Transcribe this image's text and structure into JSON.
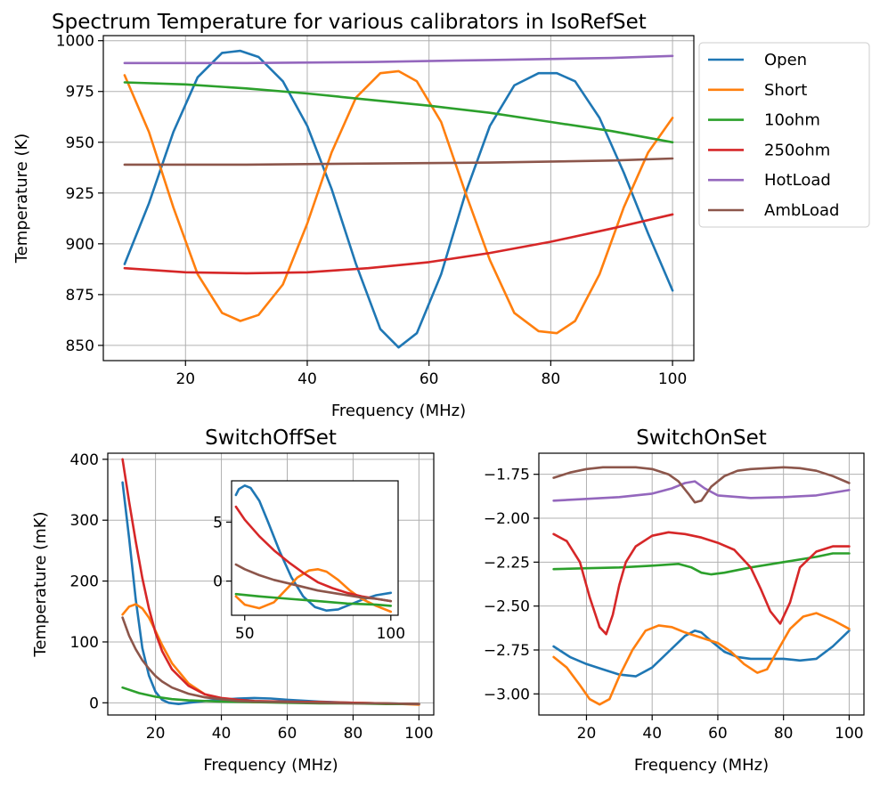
{
  "legend": [
    "Open",
    "Short",
    "10ohm",
    "250ohm",
    "HotLoad",
    "AmbLoad"
  ],
  "colors": {
    "Open": "#1f77b4",
    "Short": "#ff7f0e",
    "10ohm": "#2ca02c",
    "250ohm": "#d62728",
    "HotLoad": "#9467bd",
    "AmbLoad": "#8c564b"
  },
  "chart_data": [
    {
      "id": "main",
      "type": "line",
      "title": "Spectrum Temperature for various calibrators in IsoRefSet",
      "xlabel": "Frequency (MHz)",
      "ylabel": "Temperature (K)",
      "xlim": [
        6.5,
        103.5
      ],
      "ylim": [
        842.5,
        1002.5
      ],
      "xticks": [
        20,
        40,
        60,
        80,
        100
      ],
      "yticks": [
        850,
        875,
        900,
        925,
        950,
        975,
        1000
      ],
      "grid": true,
      "legend_position": "outside-right",
      "series": [
        {
          "name": "Open",
          "x": [
            10,
            14,
            18,
            22,
            26,
            29,
            32,
            36,
            40,
            44,
            48,
            52,
            55,
            58,
            62,
            66,
            70,
            74,
            78,
            81,
            84,
            88,
            92,
            96,
            100
          ],
          "y": [
            890,
            920,
            955,
            982,
            994,
            995,
            992,
            980,
            958,
            927,
            890,
            858,
            849,
            856,
            885,
            925,
            958,
            978,
            984,
            984,
            980,
            962,
            935,
            905,
            877
          ]
        },
        {
          "name": "Short",
          "x": [
            10,
            14,
            18,
            22,
            26,
            29,
            32,
            36,
            40,
            44,
            48,
            52,
            55,
            58,
            62,
            66,
            70,
            74,
            78,
            81,
            84,
            88,
            92,
            96,
            100
          ],
          "y": [
            983,
            955,
            918,
            885,
            866,
            862,
            865,
            880,
            910,
            945,
            972,
            984,
            985,
            980,
            960,
            925,
            892,
            866,
            857,
            856,
            862,
            885,
            918,
            945,
            962
          ]
        },
        {
          "name": "10ohm",
          "x": [
            10,
            20,
            30,
            40,
            50,
            60,
            70,
            80,
            90,
            100
          ],
          "y": [
            979.5,
            978.5,
            976.5,
            974,
            971,
            968,
            964.5,
            960,
            955.5,
            950
          ]
        },
        {
          "name": "250ohm",
          "x": [
            10,
            20,
            30,
            40,
            50,
            60,
            70,
            80,
            90,
            100
          ],
          "y": [
            888,
            886,
            885.5,
            886,
            888,
            891,
            895.5,
            901,
            907.5,
            914.5
          ]
        },
        {
          "name": "HotLoad",
          "x": [
            10,
            30,
            50,
            70,
            90,
            100
          ],
          "y": [
            989,
            989,
            989.5,
            990.5,
            991.5,
            992.5
          ]
        },
        {
          "name": "AmbLoad",
          "x": [
            10,
            30,
            50,
            70,
            90,
            100
          ],
          "y": [
            939,
            939,
            939.5,
            940,
            941,
            942
          ]
        }
      ]
    },
    {
      "id": "switchoff",
      "type": "line",
      "title": "SwitchOffSet",
      "xlabel": "Frequency (MHz)",
      "ylabel": "Temperature (mK)",
      "xlim": [
        5.5,
        104.5
      ],
      "ylim": [
        -20,
        410
      ],
      "xticks": [
        20,
        40,
        60,
        80,
        100
      ],
      "yticks": [
        0,
        100,
        200,
        300,
        400
      ],
      "grid": true,
      "series": [
        {
          "name": "Open",
          "x": [
            10,
            12,
            14,
            16,
            18,
            20,
            22,
            24,
            27,
            30,
            35,
            40,
            45,
            50,
            55,
            60,
            70,
            80,
            90,
            100
          ],
          "y": [
            362,
            270,
            170,
            90,
            45,
            18,
            5,
            0,
            -2,
            0,
            3,
            5,
            7,
            8,
            7,
            5,
            2,
            0,
            -1,
            -2
          ]
        },
        {
          "name": "Short",
          "x": [
            10,
            12,
            14,
            16,
            18,
            20,
            22,
            25,
            30,
            35,
            40,
            45,
            50,
            55,
            60,
            70,
            80,
            90,
            100
          ],
          "y": [
            145,
            158,
            162,
            155,
            140,
            118,
            95,
            65,
            32,
            14,
            6,
            3,
            1,
            1,
            1,
            1,
            0,
            -1,
            -3
          ]
        },
        {
          "name": "10ohm",
          "x": [
            10,
            15,
            20,
            25,
            30,
            40,
            50,
            60,
            70,
            80,
            90,
            100
          ],
          "y": [
            25,
            16,
            10,
            6,
            4,
            2,
            1,
            0,
            -1,
            -1,
            -2,
            -2
          ]
        },
        {
          "name": "250ohm",
          "x": [
            10,
            12,
            14,
            16,
            18,
            20,
            22,
            25,
            30,
            35,
            40,
            45,
            50,
            60,
            70,
            80,
            90,
            100
          ],
          "y": [
            400,
            330,
            265,
            205,
            155,
            115,
            85,
            55,
            28,
            14,
            8,
            5,
            3,
            2,
            1,
            0,
            -1,
            -2
          ]
        },
        {
          "name": "AmbLoad",
          "x": [
            10,
            12,
            14,
            16,
            18,
            20,
            22,
            25,
            30,
            35,
            40,
            45,
            50,
            60,
            70,
            80,
            90,
            100
          ],
          "y": [
            140,
            110,
            88,
            70,
            56,
            44,
            35,
            25,
            15,
            9,
            6,
            3,
            2,
            1,
            0,
            -1,
            -1,
            -2
          ]
        }
      ]
    },
    {
      "id": "switchoff-inset",
      "type": "line",
      "title": "",
      "xlabel": "",
      "ylabel": "",
      "xlim": [
        45.5,
        102.5
      ],
      "ylim": [
        -2.9,
        8.5
      ],
      "xticks": [
        50,
        100
      ],
      "yticks": [
        0,
        5
      ],
      "grid": false,
      "series": [
        {
          "name": "Open",
          "x": [
            47,
            48,
            50,
            52,
            55,
            58,
            62,
            66,
            70,
            74,
            78,
            82,
            86,
            90,
            95,
            100
          ],
          "y": [
            7.3,
            7.8,
            8.1,
            7.9,
            6.8,
            5.0,
            2.5,
            0.3,
            -1.3,
            -2.2,
            -2.5,
            -2.4,
            -2.0,
            -1.6,
            -1.2,
            -1.0
          ]
        },
        {
          "name": "Short",
          "x": [
            47,
            50,
            55,
            60,
            65,
            68,
            72,
            75,
            78,
            82,
            86,
            90,
            95,
            100
          ],
          "y": [
            -1.3,
            -2.0,
            -2.3,
            -1.8,
            -0.5,
            0.3,
            0.9,
            1.0,
            0.8,
            0.1,
            -0.8,
            -1.5,
            -2.1,
            -2.6
          ]
        },
        {
          "name": "10ohm",
          "x": [
            47,
            55,
            65,
            75,
            85,
            95,
            100
          ],
          "y": [
            -1.1,
            -1.3,
            -1.5,
            -1.7,
            -1.9,
            -2.0,
            -2.1
          ]
        },
        {
          "name": "250ohm",
          "x": [
            47,
            50,
            55,
            60,
            65,
            70,
            75,
            80,
            85,
            90,
            95,
            100
          ],
          "y": [
            6.3,
            5.2,
            3.8,
            2.6,
            1.6,
            0.7,
            -0.1,
            -0.6,
            -1.0,
            -1.3,
            -1.5,
            -1.7
          ]
        },
        {
          "name": "AmbLoad",
          "x": [
            47,
            50,
            55,
            60,
            65,
            70,
            75,
            80,
            85,
            90,
            95,
            100
          ],
          "y": [
            1.4,
            1.0,
            0.5,
            0.1,
            -0.2,
            -0.5,
            -0.8,
            -1.0,
            -1.2,
            -1.4,
            -1.5,
            -1.7
          ]
        }
      ]
    },
    {
      "id": "switchon",
      "type": "line",
      "title": "SwitchOnSet",
      "xlabel": "Frequency (MHz)",
      "ylabel": "",
      "xlim": [
        5.5,
        104.5
      ],
      "ylim": [
        -3.12,
        -1.63
      ],
      "xticks": [
        20,
        40,
        60,
        80,
        100
      ],
      "yticks": [
        -3.0,
        -2.75,
        -2.5,
        -2.25,
        -2.0,
        -1.75
      ],
      "grid": true,
      "series": [
        {
          "name": "Open",
          "x": [
            10,
            15,
            20,
            25,
            30,
            35,
            40,
            45,
            50,
            53,
            55,
            58,
            62,
            66,
            70,
            75,
            80,
            85,
            90,
            95,
            100
          ],
          "y": [
            -2.73,
            -2.79,
            -2.83,
            -2.86,
            -2.89,
            -2.9,
            -2.85,
            -2.76,
            -2.67,
            -2.64,
            -2.65,
            -2.7,
            -2.76,
            -2.79,
            -2.8,
            -2.8,
            -2.8,
            -2.81,
            -2.8,
            -2.73,
            -2.64
          ]
        },
        {
          "name": "Short",
          "x": [
            10,
            14,
            18,
            21,
            24,
            27,
            30,
            34,
            38,
            42,
            46,
            50,
            55,
            60,
            64,
            68,
            72,
            75,
            78,
            82,
            86,
            90,
            95,
            100
          ],
          "y": [
            -2.79,
            -2.85,
            -2.95,
            -3.03,
            -3.06,
            -3.03,
            -2.9,
            -2.75,
            -2.64,
            -2.61,
            -2.62,
            -2.65,
            -2.68,
            -2.71,
            -2.76,
            -2.83,
            -2.88,
            -2.86,
            -2.76,
            -2.63,
            -2.56,
            -2.54,
            -2.58,
            -2.63
          ]
        },
        {
          "name": "10ohm",
          "x": [
            10,
            20,
            30,
            40,
            48,
            52,
            55,
            58,
            62,
            70,
            80,
            90,
            95,
            100
          ],
          "y": [
            -2.29,
            -2.285,
            -2.28,
            -2.27,
            -2.26,
            -2.28,
            -2.31,
            -2.32,
            -2.31,
            -2.28,
            -2.25,
            -2.22,
            -2.2,
            -2.2
          ]
        },
        {
          "name": "250ohm",
          "x": [
            10,
            14,
            18,
            21,
            24,
            26,
            28,
            30,
            32,
            35,
            40,
            45,
            50,
            55,
            60,
            65,
            70,
            73,
            76,
            79,
            82,
            85,
            90,
            95,
            100
          ],
          "y": [
            -2.09,
            -2.13,
            -2.25,
            -2.45,
            -2.62,
            -2.66,
            -2.55,
            -2.38,
            -2.25,
            -2.16,
            -2.1,
            -2.08,
            -2.09,
            -2.11,
            -2.14,
            -2.18,
            -2.28,
            -2.4,
            -2.53,
            -2.6,
            -2.48,
            -2.28,
            -2.19,
            -2.16,
            -2.16
          ]
        },
        {
          "name": "HotLoad",
          "x": [
            10,
            20,
            30,
            40,
            46,
            50,
            53,
            56,
            60,
            70,
            80,
            90,
            100
          ],
          "y": [
            -1.9,
            -1.89,
            -1.88,
            -1.86,
            -1.83,
            -1.8,
            -1.79,
            -1.83,
            -1.87,
            -1.885,
            -1.88,
            -1.87,
            -1.84
          ]
        },
        {
          "name": "AmbLoad",
          "x": [
            10,
            15,
            20,
            25,
            30,
            35,
            40,
            45,
            48,
            51,
            53,
            55,
            58,
            62,
            66,
            70,
            75,
            80,
            85,
            90,
            95,
            100
          ],
          "y": [
            -1.77,
            -1.74,
            -1.72,
            -1.71,
            -1.71,
            -1.71,
            -1.72,
            -1.75,
            -1.79,
            -1.86,
            -1.91,
            -1.9,
            -1.82,
            -1.76,
            -1.73,
            -1.72,
            -1.715,
            -1.71,
            -1.715,
            -1.73,
            -1.76,
            -1.8
          ]
        }
      ]
    }
  ]
}
